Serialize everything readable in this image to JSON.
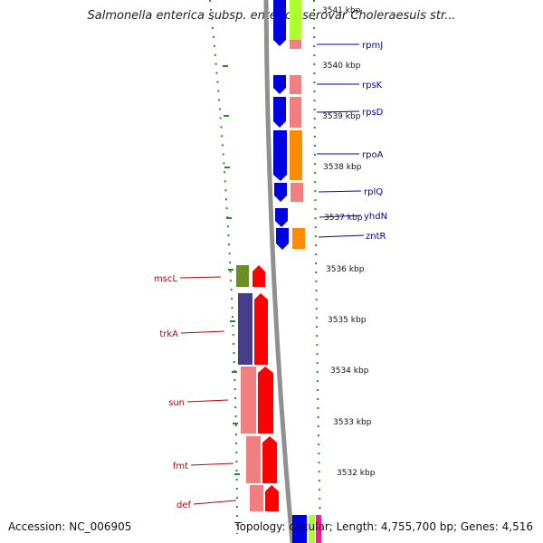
{
  "header": {
    "title": "Salmonella enterica subsp. enterica serovar Choleraesuis str..."
  },
  "footer": {
    "accession": "Accession: NC_006905",
    "summary": "Topology: circular; Length: 4,755,700 bp; Genes: 4,516"
  },
  "colors": {
    "forward_label": "#0000b0",
    "reverse_label": "#c00000",
    "backbone": "#909090",
    "tick": "#2a8a2a"
  },
  "scale_ticks": [
    {
      "label": "3541 kbp"
    },
    {
      "label": "3540 kbp"
    },
    {
      "label": "3539 kbp"
    },
    {
      "label": "3538 kbp"
    },
    {
      "label": "3537 kbp"
    },
    {
      "label": "3536 kbp"
    },
    {
      "label": "3535 kbp"
    },
    {
      "label": "3534 kbp"
    },
    {
      "label": "3533 kbp"
    },
    {
      "label": "3532 kbp"
    }
  ],
  "genes_forward": [
    {
      "name": "rpmJ"
    },
    {
      "name": "rpsK"
    },
    {
      "name": "rpsD"
    },
    {
      "name": "rpoA"
    },
    {
      "name": "rplQ"
    },
    {
      "name": "yhdN"
    },
    {
      "name": "zntR"
    }
  ],
  "genes_reverse": [
    {
      "name": "mscL"
    },
    {
      "name": "trkA"
    },
    {
      "name": "sun"
    },
    {
      "name": "fmt"
    },
    {
      "name": "def"
    }
  ]
}
